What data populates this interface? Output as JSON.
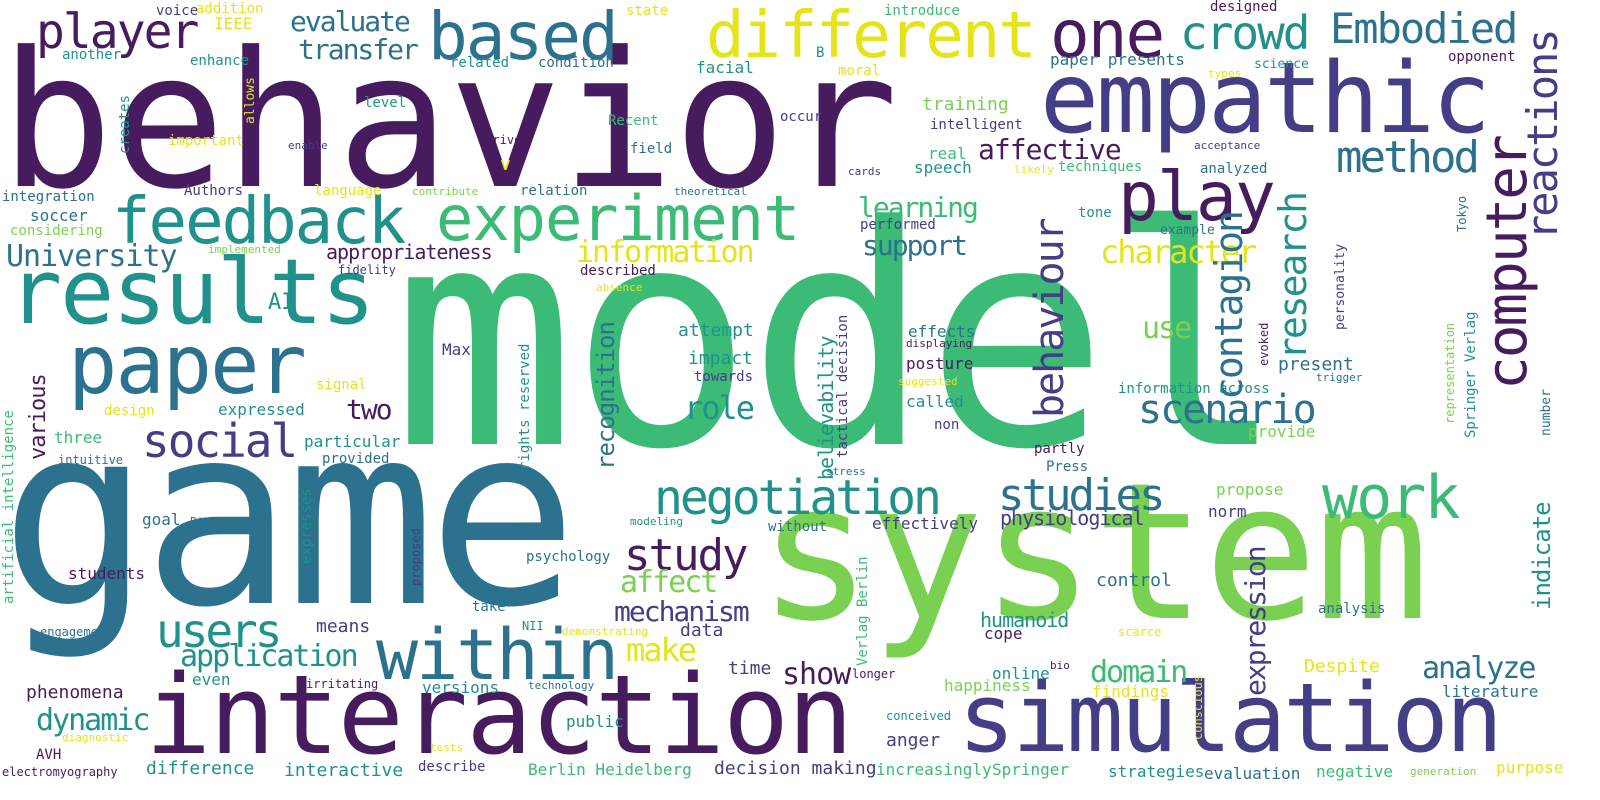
{
  "palette": {
    "background": "#ffffff",
    "dark_purple": "#471c5e",
    "indigo": "#433e85",
    "steel_blue": "#2c728e",
    "teal": "#21918c",
    "green": "#3bbb75",
    "lime": "#7ad151",
    "yellow": "#e5e419"
  },
  "words": {
    "model": "model",
    "game": "game",
    "behavior": "behavior",
    "system": "system",
    "interaction": "interaction",
    "simulation": "simulation",
    "empathic": "empathic",
    "results": "results",
    "paper": "paper",
    "feedback": "feedback",
    "experiment": "experiment",
    "based": "based",
    "different": "different",
    "one": "one",
    "within": "within",
    "computer": "computer",
    "play": "play",
    "work": "work",
    "negotiation": "negotiation",
    "studies": "studies",
    "social": "social",
    "crowd": "crowd",
    "embodied": "Embodied",
    "player": "player",
    "study": "study",
    "users": "users",
    "behaviour": "behaviour",
    "research": "research",
    "scenario": "scenario",
    "method": "method",
    "affective": "affective",
    "contagion": "contagion",
    "reactions": "reactions",
    "university": "University",
    "application": "application",
    "information": "information",
    "character": "character",
    "mechanism": "mechanism",
    "affect": "affect",
    "make": "make",
    "show": "show",
    "domain": "domain",
    "analyze": "analyze",
    "dynamic": "dynamic",
    "expression": "expression",
    "recognition": "recognition",
    "believability": "believability",
    "indicate": "indicate",
    "evaluate": "evaluate",
    "transfer": "transfer",
    "two": "two",
    "role": "role",
    "use": "use",
    "support": "support",
    "learning": "learning",
    "physiological": "physiological",
    "appropriateness": "appropriateness",
    "various": "various",
    "ai": "AI",
    "humanoid": "humanoid",
    "data": "data",
    "control": "control",
    "present": "present",
    "attempt": "attempt",
    "impact": "impact",
    "means": "means",
    "phenomena": "phenomena",
    "difference": "difference",
    "interactive": "interactive",
    "berlin_heidelberg": "Berlin Heidelberg",
    "decision_making": "decision making",
    "strategies": "strategies",
    "evaluation": "evaluation",
    "negative": "negative",
    "purpose": "purpose",
    "literature": "literature",
    "despite": "Despite",
    "findings": "findings",
    "happiness": "happiness",
    "anger": "anger",
    "increasingly": "increasingly",
    "springer": "Springer",
    "describe": "describe",
    "public": "public",
    "time": "time",
    "even": "even",
    "versions": "versions",
    "online": "online",
    "cope": "cope",
    "propose": "propose",
    "norm": "norm",
    "provide": "provide",
    "analysis": "analysis",
    "students": "students",
    "goal": "goal",
    "three": "three",
    "expressed": "expressed",
    "design": "design",
    "signal": "signal",
    "particular": "particular",
    "provided": "provided",
    "max": "Max",
    "take": "take",
    "psychology": "psychology",
    "without": "without",
    "effectively": "effectively",
    "called": "called",
    "non": "non",
    "posture": "posture",
    "effects": "effects",
    "displaying": "displaying",
    "towards": "towards",
    "speech": "speech",
    "real": "real",
    "training": "training",
    "intelligent": "intelligent",
    "facial": "facial",
    "level": "level",
    "voice": "voice",
    "addition": "addition",
    "ieee": "IEEE",
    "another": "another",
    "enhance": "enhance",
    "allows": "allows",
    "related": "related",
    "condition": "condition",
    "state": "state",
    "introduce": "introduce",
    "designed": "designed",
    "paper_presents": "paper presents",
    "science": "science",
    "opponent": "opponent",
    "types": "types",
    "moral": "moral",
    "b": "B",
    "recent": "Recent",
    "occur": "occur",
    "field": "field",
    "derive": "derive",
    "important": "important",
    "enable": "enable",
    "creates": "creates",
    "acceptance": "acceptance",
    "analyzed": "analyzed",
    "techniques": "techniques",
    "likely": "likely",
    "cards": "cards",
    "integration": "integration",
    "soccer": "soccer",
    "considering": "considering",
    "authors": "Authors",
    "language": "language",
    "contribute": "contribute",
    "relation": "relation",
    "theoretical": "theoretical",
    "v": "v",
    "tone": "tone",
    "example": "example",
    "performed": "performed",
    "tokyo": "Tokyo",
    "described": "described",
    "absence": "absence",
    "fidelity": "fidelity",
    "implemented": "implemented",
    "personality": "personality",
    "rights_reserved": "rights reserved",
    "successfully": "successfully",
    "tactical_decision": "tactical decision",
    "evoked": "evoked",
    "trigger": "trigger",
    "representation": "representation",
    "springer_verlag": "Springer Verlag",
    "number": "number",
    "suggested": "suggested",
    "information_across": "information across",
    "partly": "partly",
    "press": "Press",
    "stress": "stress",
    "artificial_intelligence": "artificial intelligence",
    "intuitive": "intuitive",
    "bielefeld": "Bielefeld",
    "expresses": "expresses",
    "modeling": "modeling",
    "proposed": "proposed",
    "engagement": "engagement",
    "nii": "NII",
    "demonstrating": "demonstrating",
    "verlag_berlin": "Verlag Berlin",
    "scarce": "scarce",
    "irritating": "irritating",
    "technology": "technology",
    "bio": "bio",
    "longer": "longer",
    "conscious": "conscious",
    "conceived": "conceived",
    "diagnostic": "diagnostic",
    "avh": "AVH",
    "electromyography": "electromyography",
    "tests": "tests",
    "generation": "generation"
  }
}
